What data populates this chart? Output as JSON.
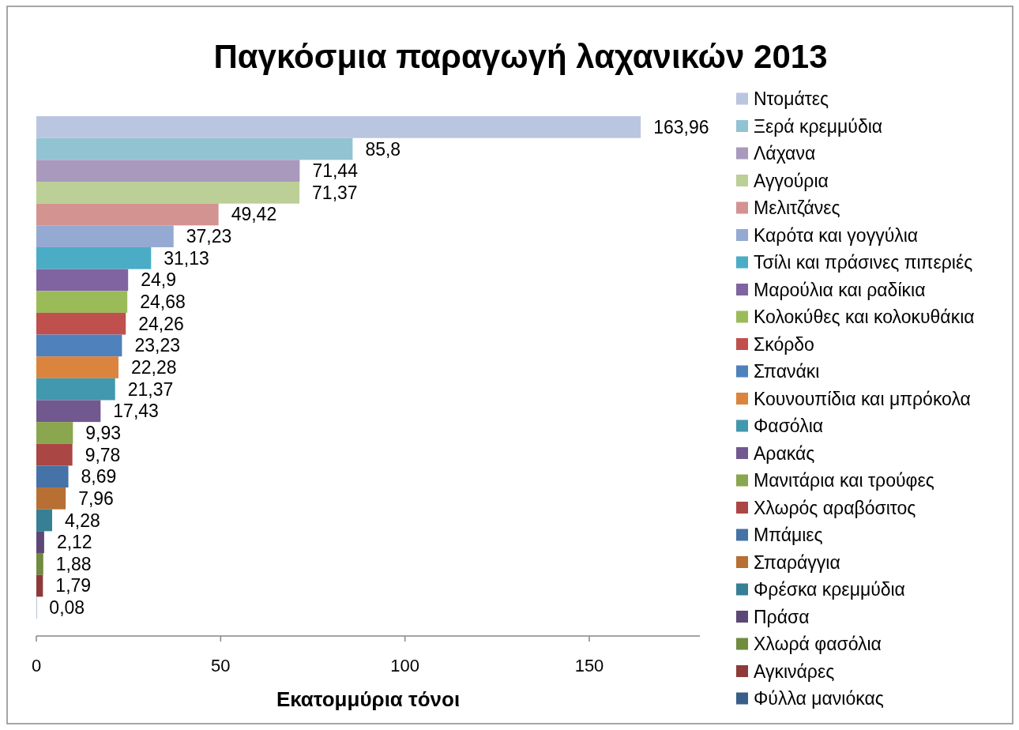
{
  "chart_data": {
    "type": "bar",
    "orientation": "horizontal",
    "title": "Παγκόσμια παραγωγή λαχανικών 2013",
    "xlabel": "Εκατομμύρια τόνοι",
    "categories": [
      null
    ],
    "series": [
      {
        "name": "Ντομάτες",
        "color": "#bac6e0",
        "values": [
          163.96
        ],
        "value_labels": [
          "163,96"
        ]
      },
      {
        "name": "Ξερά κρεμμύδια",
        "color": "#92c3d3",
        "values": [
          85.8
        ],
        "value_labels": [
          "85,8"
        ]
      },
      {
        "name": "Λάχανα",
        "color": "#a99abd",
        "values": [
          71.44
        ],
        "value_labels": [
          "71,44"
        ]
      },
      {
        "name": "Αγγούρια",
        "color": "#bbcf97",
        "values": [
          71.37
        ],
        "value_labels": [
          "71,37"
        ]
      },
      {
        "name": "Μελιτζάνες",
        "color": "#d39391",
        "values": [
          49.42
        ],
        "value_labels": [
          "49,42"
        ]
      },
      {
        "name": "Καρότα και γογγύλια",
        "color": "#94aad2",
        "values": [
          37.23
        ],
        "value_labels": [
          "37,23"
        ]
      },
      {
        "name": "Τσίλι και πράσινες πιπεριές",
        "color": "#4bacc6",
        "values": [
          31.13
        ],
        "value_labels": [
          "31,13"
        ]
      },
      {
        "name": "Μαρούλια και ραδίκια",
        "color": "#8064a2",
        "values": [
          24.9
        ],
        "value_labels": [
          "24,9"
        ]
      },
      {
        "name": "Κολοκύθες και κολοκυθάκια",
        "color": "#9bbb59",
        "values": [
          24.68
        ],
        "value_labels": [
          "24,68"
        ]
      },
      {
        "name": "Σκόρδο",
        "color": "#c0504d",
        "values": [
          24.26
        ],
        "value_labels": [
          "24,26"
        ]
      },
      {
        "name": "Σπανάκι",
        "color": "#4f81bd",
        "values": [
          23.23
        ],
        "value_labels": [
          "23,23"
        ]
      },
      {
        "name": "Κουνουπίδια και μπρόκολα",
        "color": "#db843d",
        "values": [
          22.28
        ],
        "value_labels": [
          "22,28"
        ]
      },
      {
        "name": "Φασόλια",
        "color": "#4298af",
        "values": [
          21.37
        ],
        "value_labels": [
          "21,37"
        ]
      },
      {
        "name": "Αρακάς",
        "color": "#71588f",
        "values": [
          17.43
        ],
        "value_labels": [
          "17,43"
        ]
      },
      {
        "name": "Μανιτάρια και τρούφες",
        "color": "#8aa64f",
        "values": [
          9.93
        ],
        "value_labels": [
          "9,93"
        ]
      },
      {
        "name": "Χλωρός αραβόσιτος",
        "color": "#aa4644",
        "values": [
          9.78
        ],
        "value_labels": [
          "9,78"
        ]
      },
      {
        "name": "Μπάμιες",
        "color": "#4572a7",
        "values": [
          8.69
        ],
        "value_labels": [
          "8,69"
        ]
      },
      {
        "name": "Σπαράγγια",
        "color": "#b86f33",
        "values": [
          7.96
        ],
        "value_labels": [
          "7,96"
        ]
      },
      {
        "name": "Φρέσκα κρεμμύδια",
        "color": "#367f94",
        "values": [
          4.28
        ],
        "value_labels": [
          "4,28"
        ]
      },
      {
        "name": "Πράσα",
        "color": "#5c4776",
        "values": [
          2.12
        ],
        "value_labels": [
          "2,12"
        ]
      },
      {
        "name": "Χλωρά φασόλια",
        "color": "#718b3f",
        "values": [
          1.88
        ],
        "value_labels": [
          "1,88"
        ]
      },
      {
        "name": "Αγκινάρες",
        "color": "#8e3a38",
        "values": [
          1.79
        ],
        "value_labels": [
          "1,79"
        ]
      },
      {
        "name": "Φύλλα μανιόκας",
        "color": "#395e8a",
        "values": [
          0.08
        ],
        "value_labels": [
          "0,08"
        ]
      }
    ],
    "xlim": [
      0,
      180
    ],
    "xticks": [
      0,
      50,
      100,
      150
    ],
    "tick_labels": "x",
    "legend": "right"
  }
}
